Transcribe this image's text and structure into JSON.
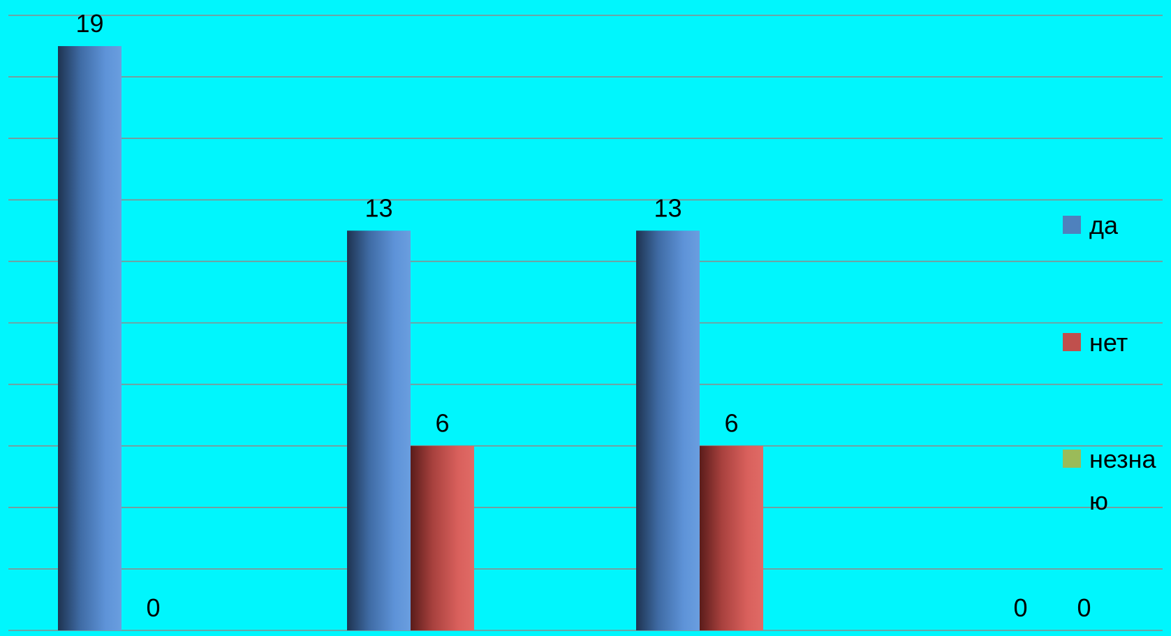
{
  "chart_data": {
    "type": "bar",
    "title": "",
    "xlabel": "",
    "ylabel": "",
    "ylim": [
      0,
      20
    ],
    "grid": true,
    "legend_position": "right",
    "categories": [
      "",
      "",
      "",
      ""
    ],
    "series": [
      {
        "name": "да",
        "color": "#4F81BD",
        "values": [
          19,
          13,
          13,
          null
        ]
      },
      {
        "name": "нет",
        "color": "#C0504D",
        "values": [
          0,
          6,
          6,
          0
        ]
      },
      {
        "name": "незнаю",
        "label_lines": [
          "незна",
          "ю"
        ],
        "color": "#9BBB59",
        "values": [
          null,
          null,
          null,
          0
        ]
      }
    ]
  }
}
